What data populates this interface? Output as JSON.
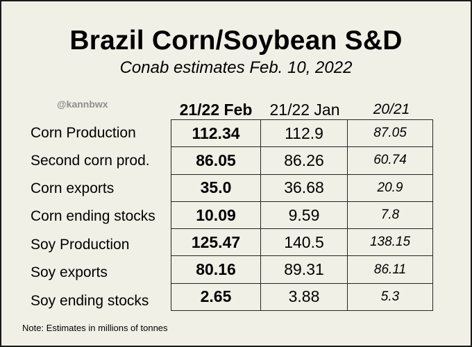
{
  "title": "Brazil Corn/Soybean S&D",
  "subtitle": "Conab estimates Feb. 10, 2022",
  "handle": "@kannbwx",
  "columns": {
    "feb": "21/22 Feb",
    "jan": "21/22 Jan",
    "prev": "20/21"
  },
  "rows": [
    {
      "label": "Corn Production",
      "feb": "112.34",
      "jan": "112.9",
      "prev": "87.05"
    },
    {
      "label": "Second corn prod.",
      "feb": "86.05",
      "jan": "86.26",
      "prev": "60.74"
    },
    {
      "label": "Corn exports",
      "feb": "35.0",
      "jan": "36.68",
      "prev": "20.9"
    },
    {
      "label": "Corn ending stocks",
      "feb": "10.09",
      "jan": "9.59",
      "prev": "7.8"
    },
    {
      "label": "Soy Production",
      "feb": "125.47",
      "jan": "140.5",
      "prev": "138.15"
    },
    {
      "label": "Soy exports",
      "feb": "80.16",
      "jan": "89.31",
      "prev": "86.11"
    },
    {
      "label": "Soy ending stocks",
      "feb": "2.65",
      "jan": "3.88",
      "prev": "5.3"
    }
  ],
  "note": "Note: Estimates in millions of tonnes",
  "colors": {
    "background": "#f1f0e6",
    "handle": "#8d8d8d",
    "border": "#1a1a1a"
  }
}
